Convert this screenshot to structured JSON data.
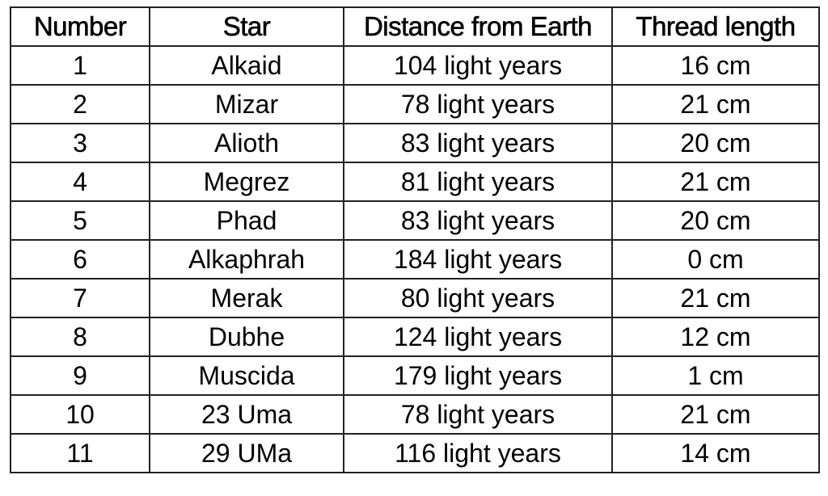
{
  "table": {
    "headers": [
      "Number",
      "Star",
      "Distance from Earth",
      "Thread length"
    ],
    "rows": [
      [
        "1",
        "Alkaid",
        "104 light years",
        "16 cm"
      ],
      [
        "2",
        "Mizar",
        "78 light years",
        "21 cm"
      ],
      [
        "3",
        "Alioth",
        "83 light years",
        "20 cm"
      ],
      [
        "4",
        "Megrez",
        "81 light years",
        "21 cm"
      ],
      [
        "5",
        "Phad",
        "83 light years",
        "20 cm"
      ],
      [
        "6",
        "Alkaphrah",
        "184 light years",
        "0 cm"
      ],
      [
        "7",
        "Merak",
        "80 light years",
        "21 cm"
      ],
      [
        "8",
        "Dubhe",
        "124 light years",
        "12 cm"
      ],
      [
        "9",
        "Muscida",
        "179 light years",
        "1 cm"
      ],
      [
        "10",
        "23 Uma",
        "78 light years",
        "21 cm"
      ],
      [
        "11",
        "29 UMa",
        "116 light years",
        "14 cm"
      ]
    ]
  }
}
